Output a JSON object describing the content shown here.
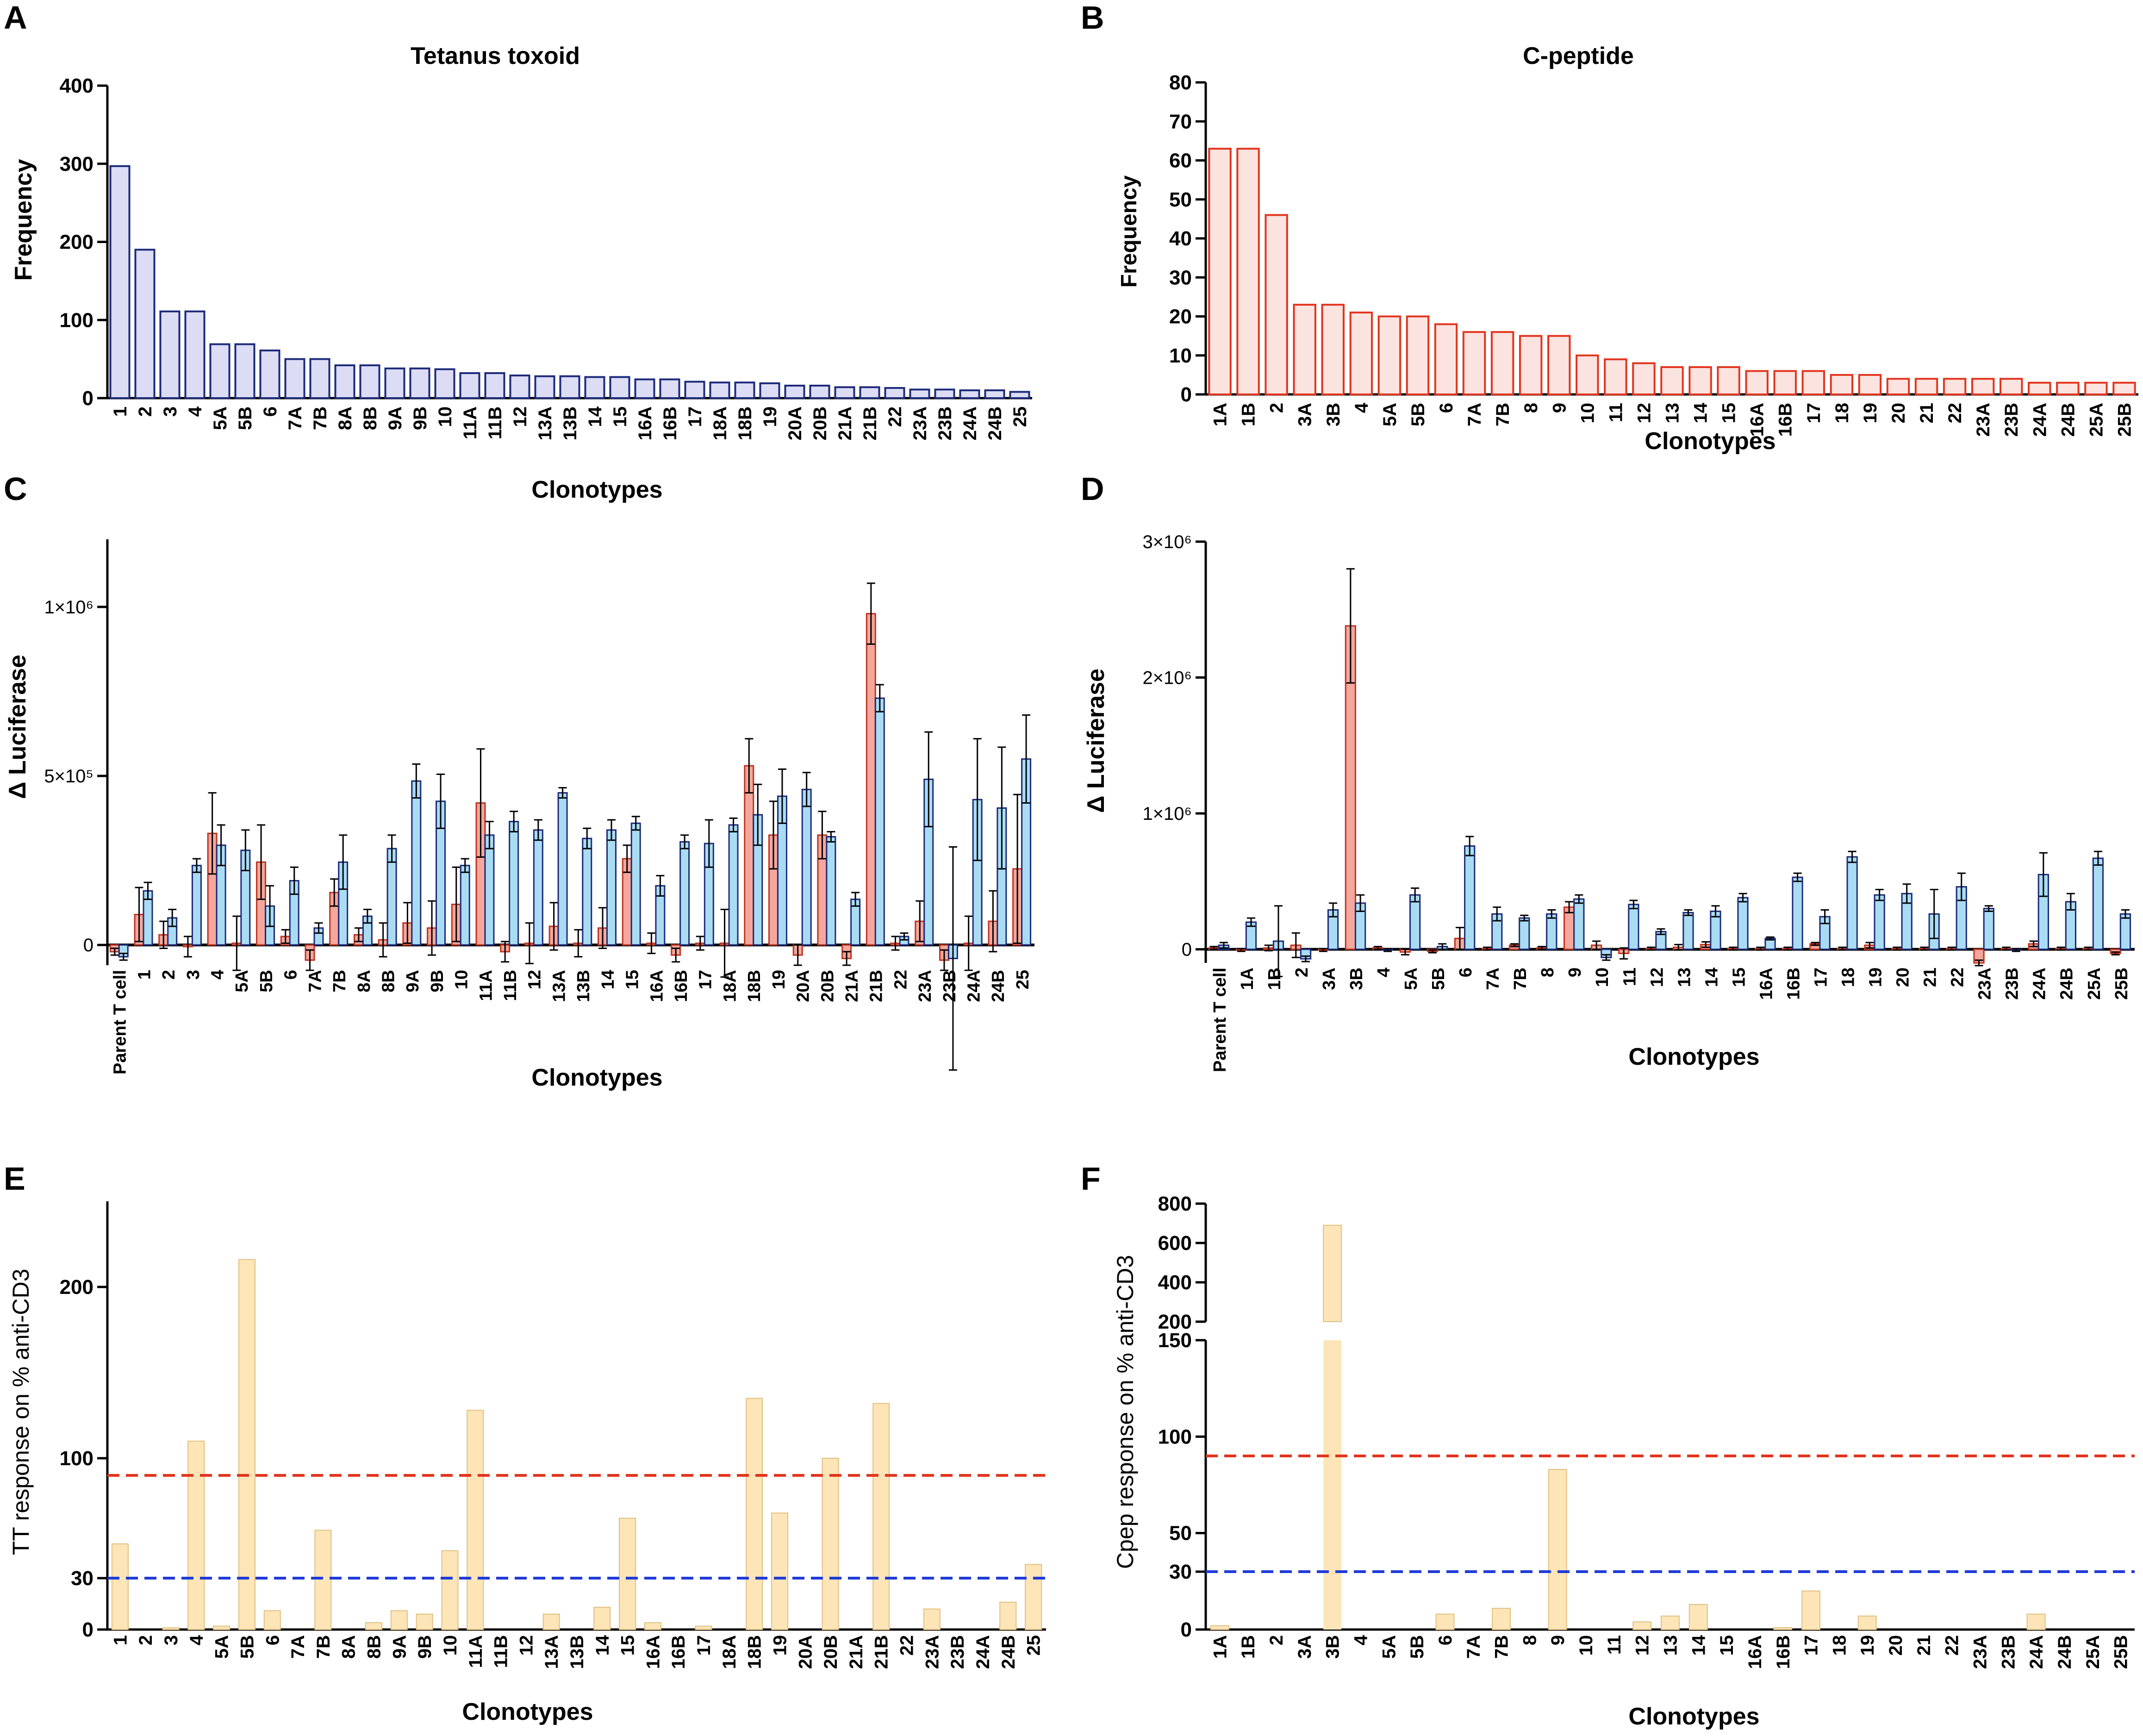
{
  "chart_data": [
    {
      "panel": "A",
      "type": "bar",
      "title": "Tetanus toxoid",
      "xlabel": "Clonotypes",
      "ylabel": "Frequency",
      "ylim": [
        0,
        400
      ],
      "yticks": [
        0,
        100,
        200,
        300,
        400
      ],
      "colors": {
        "fill": "#dcdcf5",
        "stroke": "#1c2a7a"
      },
      "categories": [
        "1",
        "2",
        "3",
        "4",
        "5A",
        "5B",
        "6",
        "7A",
        "7B",
        "8A",
        "8B",
        "9A",
        "9B",
        "10",
        "11A",
        "11B",
        "12",
        "13A",
        "13B",
        "14",
        "15",
        "16A",
        "16B",
        "17",
        "18A",
        "18B",
        "19",
        "20A",
        "20B",
        "21A",
        "21B",
        "22",
        "23A",
        "23B",
        "24A",
        "24B",
        "25"
      ],
      "values": [
        297,
        190,
        111,
        111,
        69,
        69,
        61,
        50,
        50,
        42,
        42,
        38,
        38,
        37,
        32,
        32,
        29,
        28,
        28,
        27,
        27,
        24,
        24,
        21,
        20,
        20,
        19,
        16,
        16,
        14,
        14,
        13,
        11,
        11,
        10,
        10,
        8
      ]
    },
    {
      "panel": "B",
      "type": "bar",
      "title": "C-peptide",
      "xlabel": "Clonotypes",
      "ylabel": "Frequency",
      "ylim": [
        0,
        80
      ],
      "yticks": [
        0,
        10,
        20,
        30,
        40,
        50,
        60,
        70,
        80
      ],
      "colors": {
        "fill": "#fbe3e0",
        "stroke": "#e2341d"
      },
      "categories": [
        "1A",
        "1B",
        "2",
        "3A",
        "3B",
        "4",
        "5A",
        "5B",
        "6",
        "7A",
        "7B",
        "8",
        "9",
        "10",
        "11",
        "12",
        "13",
        "14",
        "15",
        "16A",
        "16B",
        "17",
        "18",
        "19",
        "20",
        "21",
        "22",
        "23A",
        "23B",
        "24A",
        "24B",
        "25A",
        "25B"
      ],
      "values": [
        63,
        63,
        46,
        23,
        23,
        21,
        20,
        20,
        18,
        16,
        16,
        15,
        15,
        10,
        9,
        8,
        7,
        7,
        7,
        6,
        6,
        6,
        5,
        5,
        4,
        4,
        4,
        4,
        4,
        3,
        3,
        3,
        3
      ]
    },
    {
      "panel": "C",
      "type": "bar",
      "title": "",
      "xlabel": "Clonotypes",
      "ylabel": "Δ Luciferase",
      "ylim": [
        -60000,
        1200000
      ],
      "yticks": [
        0,
        500000,
        1000000
      ],
      "ytick_labels": [
        "0",
        "5×10⁵",
        "1×10⁶"
      ],
      "colors": {
        "red_fill": "#f3a79d",
        "red_stroke": "#c2321f",
        "blue_fill": "#a9dcf2",
        "blue_stroke": "#1c2a7a"
      },
      "categories": [
        "Parent T cell",
        "1",
        "2",
        "3",
        "4",
        "5A",
        "5B",
        "6",
        "7A",
        "7B",
        "8A",
        "8B",
        "9A",
        "9B",
        "10",
        "11A",
        "11B",
        "12",
        "13A",
        "13B",
        "14",
        "15",
        "16A",
        "16B",
        "17",
        "18A",
        "18B",
        "19",
        "20A",
        "20B",
        "21A",
        "21B",
        "22",
        "23A",
        "23B",
        "24A",
        "24B",
        "25"
      ],
      "series": [
        {
          "name": "red",
          "values": [
            -20000,
            90000,
            30000,
            -5000,
            330000,
            5000,
            245000,
            25000,
            -45000,
            155000,
            30000,
            15000,
            65000,
            50000,
            120000,
            420000,
            -20000,
            5000,
            55000,
            5000,
            50000,
            255000,
            5000,
            -30000,
            5000,
            5000,
            530000,
            325000,
            -30000,
            325000,
            -40000,
            980000,
            5000,
            70000,
            -45000,
            5000,
            70000,
            225000
          ],
          "errors": [
            10000,
            80000,
            40000,
            30000,
            120000,
            80000,
            110000,
            20000,
            30000,
            40000,
            20000,
            50000,
            60000,
            80000,
            110000,
            160000,
            30000,
            60000,
            70000,
            40000,
            60000,
            40000,
            30000,
            20000,
            20000,
            100000,
            80000,
            100000,
            30000,
            70000,
            20000,
            90000,
            20000,
            60000,
            30000,
            80000,
            90000,
            220000
          ]
        },
        {
          "name": "blue",
          "values": [
            -35000,
            160000,
            80000,
            235000,
            295000,
            280000,
            115000,
            190000,
            50000,
            245000,
            85000,
            285000,
            485000,
            425000,
            235000,
            325000,
            365000,
            340000,
            450000,
            315000,
            340000,
            360000,
            175000,
            305000,
            300000,
            355000,
            385000,
            440000,
            460000,
            320000,
            135000,
            730000,
            25000,
            490000,
            -40000,
            430000,
            405000,
            550000
          ],
          "errors": [
            10000,
            25000,
            25000,
            20000,
            60000,
            60000,
            60000,
            40000,
            15000,
            80000,
            20000,
            40000,
            50000,
            80000,
            20000,
            40000,
            30000,
            30000,
            15000,
            30000,
            30000,
            20000,
            30000,
            20000,
            70000,
            20000,
            90000,
            80000,
            50000,
            15000,
            20000,
            40000,
            10000,
            140000,
            330000,
            180000,
            180000,
            130000
          ]
        }
      ]
    },
    {
      "panel": "D",
      "type": "bar",
      "title": "",
      "xlabel": "Clonotypes",
      "ylabel": "Δ Luciferase",
      "ylim": [
        -100000,
        3000000
      ],
      "yticks": [
        0,
        1000000,
        2000000,
        3000000
      ],
      "ytick_labels": [
        "0",
        "1×10⁶",
        "2×10⁶",
        "3×10⁶"
      ],
      "colors": {
        "red_fill": "#f3a79d",
        "red_stroke": "#c2321f",
        "blue_fill": "#a9dcf2",
        "blue_stroke": "#1c2a7a"
      },
      "categories": [
        "Parent T cell",
        "1A",
        "1B",
        "2",
        "3A",
        "3B",
        "4",
        "5A",
        "5B",
        "6",
        "7A",
        "7B",
        "8",
        "9",
        "10",
        "11",
        "12",
        "13",
        "14",
        "15",
        "16A",
        "16B",
        "17",
        "18",
        "19",
        "20",
        "21",
        "22",
        "23A",
        "23B",
        "24A",
        "24B",
        "25A",
        "25B"
      ],
      "series": [
        {
          "name": "red",
          "values": [
            10000,
            -5000,
            10000,
            30000,
            -5000,
            2380000,
            10000,
            -20000,
            -15000,
            80000,
            5000,
            30000,
            10000,
            310000,
            30000,
            -30000,
            5000,
            15000,
            35000,
            5000,
            5000,
            5000,
            40000,
            5000,
            30000,
            5000,
            5000,
            5000,
            -100000,
            5000,
            40000,
            5000,
            5000,
            -30000
          ],
          "errors": [
            10000,
            10000,
            20000,
            90000,
            10000,
            420000,
            10000,
            20000,
            10000,
            80000,
            10000,
            10000,
            10000,
            40000,
            30000,
            40000,
            10000,
            20000,
            20000,
            10000,
            10000,
            10000,
            10000,
            10000,
            20000,
            10000,
            10000,
            10000,
            20000,
            10000,
            20000,
            10000,
            10000,
            10000
          ]
        },
        {
          "name": "blue",
          "values": [
            30000,
            200000,
            60000,
            -70000,
            290000,
            340000,
            -5000,
            400000,
            20000,
            760000,
            260000,
            230000,
            260000,
            370000,
            -60000,
            330000,
            130000,
            270000,
            280000,
            380000,
            80000,
            530000,
            240000,
            680000,
            400000,
            410000,
            260000,
            460000,
            300000,
            -5000,
            550000,
            350000,
            670000,
            260000
          ],
          "errors": [
            20000,
            30000,
            260000,
            20000,
            50000,
            60000,
            10000,
            50000,
            20000,
            70000,
            50000,
            20000,
            30000,
            30000,
            20000,
            30000,
            20000,
            20000,
            40000,
            30000,
            10000,
            30000,
            50000,
            40000,
            40000,
            70000,
            180000,
            100000,
            20000,
            10000,
            160000,
            60000,
            50000,
            30000
          ]
        }
      ]
    },
    {
      "panel": "E",
      "type": "bar",
      "title": "",
      "xlabel": "Clonotypes",
      "ylabel": "TT response on %  anti-CD3",
      "ylim": [
        0,
        250
      ],
      "yticks": [
        0,
        30,
        100,
        200
      ],
      "thresholds": [
        {
          "value": 90,
          "color": "#e2341d"
        },
        {
          "value": 30,
          "color": "#1f3bd9"
        }
      ],
      "colors": {
        "fill": "#fde5b8",
        "stroke": "#e0c080"
      },
      "categories": [
        "1",
        "2",
        "3",
        "4",
        "5A",
        "5B",
        "6",
        "7A",
        "7B",
        "8A",
        "8B",
        "9A",
        "9B",
        "10",
        "11A",
        "11B",
        "12",
        "13A",
        "13B",
        "14",
        "15",
        "16A",
        "16B",
        "17",
        "18A",
        "18B",
        "19",
        "20A",
        "20B",
        "21A",
        "21B",
        "22",
        "23A",
        "23B",
        "24A",
        "24B",
        "25"
      ],
      "values": [
        50,
        0,
        1,
        110,
        2,
        216,
        11,
        0,
        58,
        0,
        4,
        11,
        9,
        46,
        128,
        0,
        0,
        9,
        0,
        13,
        65,
        4,
        0,
        2,
        0,
        135,
        68,
        0,
        100,
        0,
        132,
        0,
        12,
        0,
        0,
        16,
        38
      ]
    },
    {
      "panel": "F",
      "type": "bar",
      "title": "",
      "xlabel": "Clonotypes",
      "ylabel": "Cpep response on % anti-CD3",
      "ylim": [
        0,
        800
      ],
      "axis_break": [
        150,
        200
      ],
      "yticks_lower": [
        0,
        30,
        50,
        100,
        150
      ],
      "yticks_upper": [
        200,
        400,
        600,
        800
      ],
      "thresholds": [
        {
          "value": 90,
          "color": "#e2341d"
        },
        {
          "value": 30,
          "color": "#1f3bd9"
        }
      ],
      "colors": {
        "fill": "#fde5b8",
        "stroke": "#e0c080"
      },
      "categories": [
        "1A",
        "1B",
        "2",
        "3A",
        "3B",
        "4",
        "5A",
        "5B",
        "6",
        "7A",
        "7B",
        "8",
        "9",
        "10",
        "11",
        "12",
        "13",
        "14",
        "15",
        "16A",
        "16B",
        "17",
        "18",
        "19",
        "20",
        "21",
        "22",
        "23A",
        "23B",
        "24A",
        "24B",
        "25A",
        "25B"
      ],
      "values": [
        2,
        0,
        0,
        0,
        690,
        0,
        0,
        0,
        8,
        0,
        11,
        0,
        83,
        0,
        0,
        4,
        7,
        13,
        0,
        0,
        1,
        20,
        0,
        7,
        0,
        0,
        0,
        0,
        0,
        8,
        0,
        0,
        0
      ]
    }
  ],
  "panel_letters": [
    "A",
    "B",
    "C",
    "D",
    "E",
    "F"
  ]
}
